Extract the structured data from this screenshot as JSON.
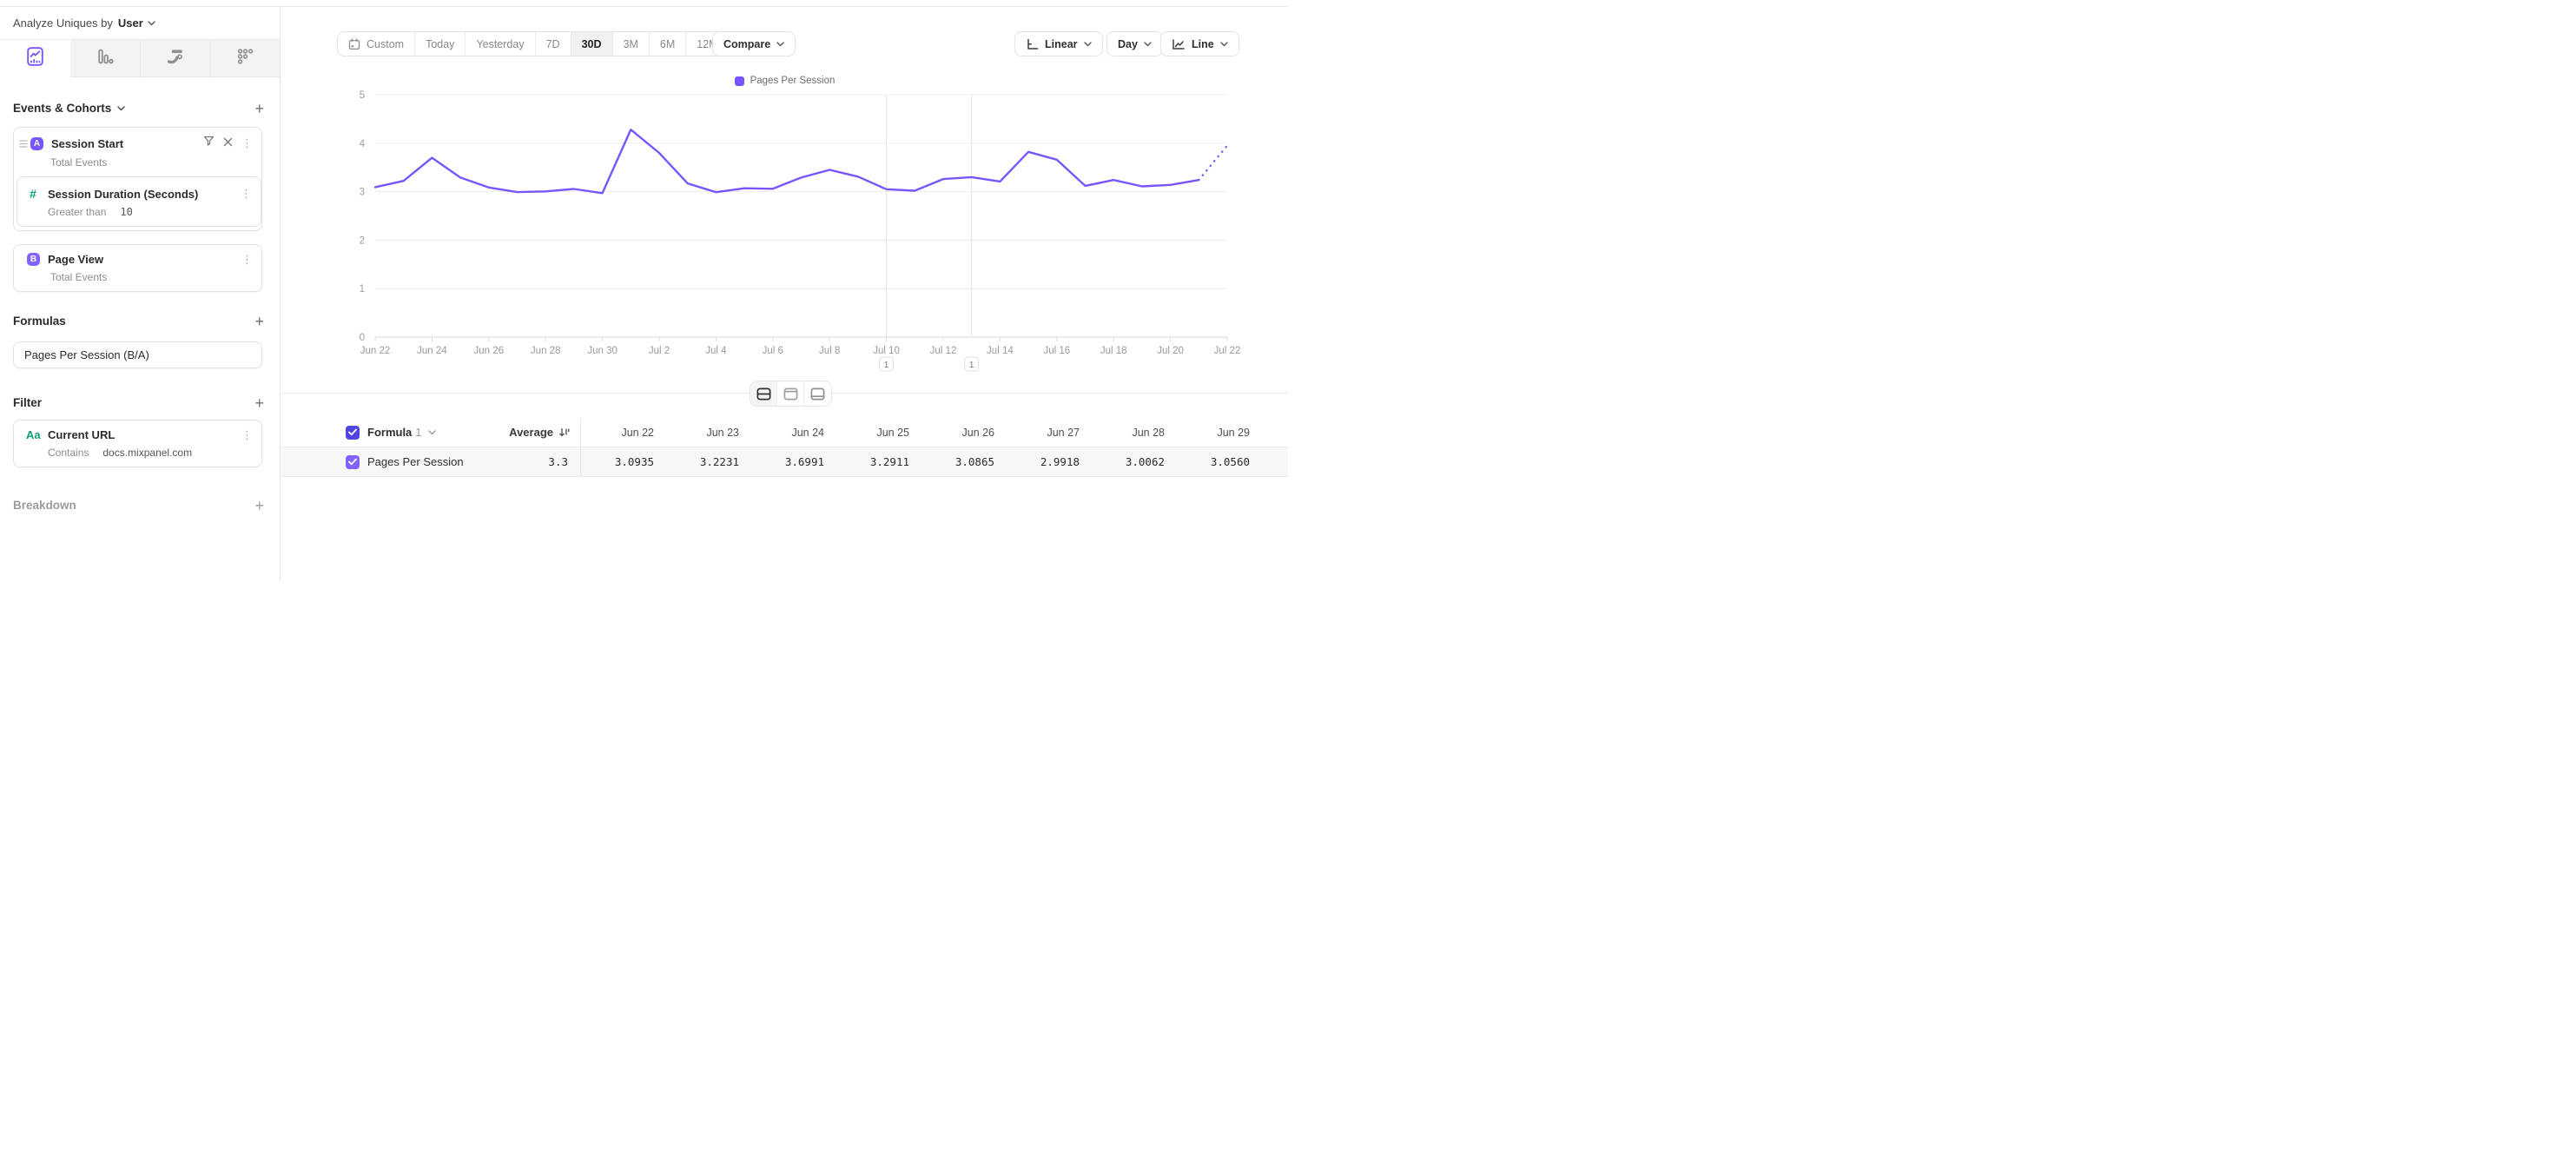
{
  "colors": {
    "accent_purple": "#7856ff",
    "badge_a": "#7856ff",
    "badge_b": "#8262ff",
    "checkbox_header": "#4f44e0",
    "checkbox_row": "#8262ff",
    "green": "#0f9f77"
  },
  "header": {
    "analyze_label": "Analyze Uniques by",
    "analyze_value": "User"
  },
  "sidebar": {
    "add_label": "+",
    "events_title": "Events & Cohorts",
    "session_start": {
      "letter": "A",
      "title": "Session Start",
      "subtitle": "Total Events"
    },
    "session_duration": {
      "hash": "#",
      "title": "Session Duration (Seconds)",
      "operator": "Greater than",
      "value": "10"
    },
    "page_view": {
      "letter": "B",
      "title": "Page View",
      "subtitle": "Total Events"
    },
    "formulas_title": "Formulas",
    "formula_text": "Pages Per Session (B/A)",
    "filter_title": "Filter",
    "filter": {
      "icon_text": "Aa",
      "title": "Current URL",
      "operator": "Contains",
      "value": "docs.mixpanel.com"
    },
    "breakdown_title": "Breakdown"
  },
  "toolbar": {
    "ranges": [
      "Custom",
      "Today",
      "Yesterday",
      "7D",
      "30D",
      "3M",
      "6M",
      "12M"
    ],
    "selected_range": "30D",
    "compare_label": "Compare",
    "scale_label": "Linear",
    "interval_label": "Day",
    "chart_type_label": "Line"
  },
  "chart_data": {
    "type": "line",
    "legend": [
      {
        "label": "Pages Per Session",
        "color": "#7856ff"
      }
    ],
    "legend_position": "top",
    "x": [
      "Jun 22",
      "Jun 23",
      "Jun 24",
      "Jun 25",
      "Jun 26",
      "Jun 27",
      "Jun 28",
      "Jun 29",
      "Jun 30",
      "Jul 1",
      "Jul 2",
      "Jul 3",
      "Jul 4",
      "Jul 5",
      "Jul 6",
      "Jul 7",
      "Jul 8",
      "Jul 9",
      "Jul 10",
      "Jul 11",
      "Jul 12",
      "Jul 13",
      "Jul 14",
      "Jul 15",
      "Jul 16",
      "Jul 17",
      "Jul 18",
      "Jul 19",
      "Jul 20",
      "Jul 21",
      "Jul 22"
    ],
    "x_label_every": 2,
    "series": [
      {
        "name": "Pages Per Session",
        "color": "#7856ff",
        "values": [
          3.0935,
          3.2231,
          3.6991,
          3.2911,
          3.0865,
          2.9918,
          3.0062,
          3.056,
          2.97,
          4.28,
          3.8,
          3.17,
          2.99,
          3.07,
          3.06,
          3.29,
          3.45,
          3.31,
          3.05,
          3.02,
          3.26,
          3.3,
          3.21,
          3.82,
          3.66,
          3.12,
          3.24,
          3.11,
          3.14,
          3.24,
          3.95
        ],
        "dashed_from_index": 29
      }
    ],
    "ylim": [
      0,
      5
    ],
    "yticks": [
      0,
      1,
      2,
      3,
      4,
      5
    ],
    "grid": true,
    "annotations": [
      {
        "label": "1",
        "x": "Jul 10",
        "day_index": 18
      },
      {
        "label": "1",
        "x": "Jul 13",
        "day_index": 21
      }
    ]
  },
  "table": {
    "formula_label": "Formula",
    "formula_index": "1",
    "average_label": "Average",
    "date_columns": [
      "Jun 22",
      "Jun 23",
      "Jun 24",
      "Jun 25",
      "Jun 26",
      "Jun 27",
      "Jun 28",
      "Jun 29"
    ],
    "rows": [
      {
        "label": "Pages Per Session",
        "average": "3.3",
        "values": [
          "3.0935",
          "3.2231",
          "3.6991",
          "3.2911",
          "3.0865",
          "2.9918",
          "3.0062",
          "3.0560"
        ]
      }
    ]
  }
}
